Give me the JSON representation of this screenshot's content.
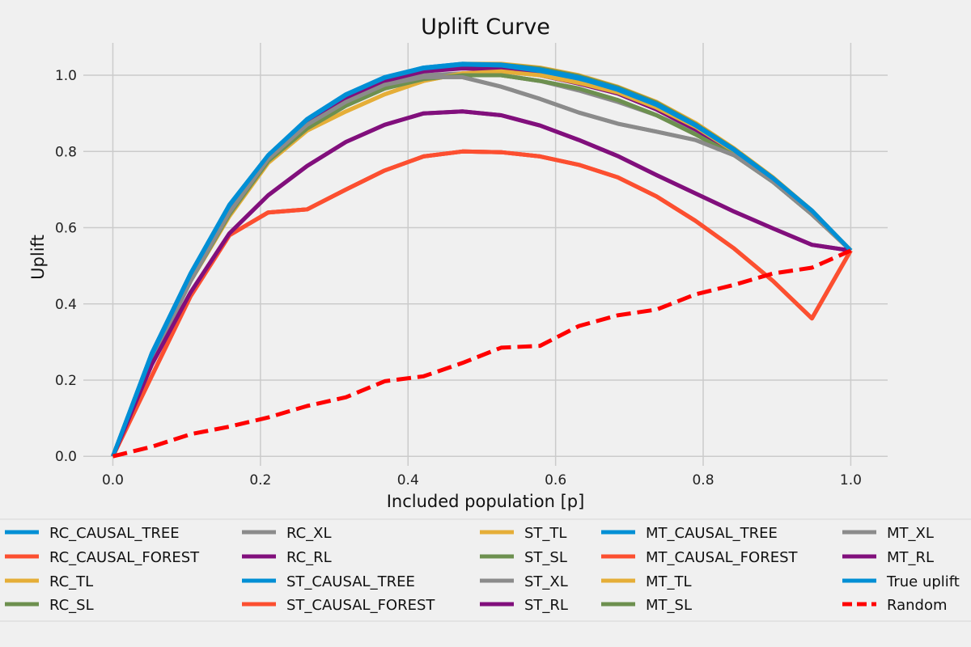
{
  "chart_data": {
    "type": "line",
    "title": "Uplift Curve",
    "xlabel": "Included population [p]",
    "ylabel": "Uplift",
    "xlim": [
      -0.04,
      1.05
    ],
    "ylim": [
      -0.025,
      1.085
    ],
    "xticks": [
      0.0,
      0.2,
      0.4,
      0.6,
      0.8,
      1.0
    ],
    "yticks": [
      0.0,
      0.2,
      0.4,
      0.6,
      0.8,
      1.0
    ],
    "x_tick_labels": [
      "0.0",
      "0.2",
      "0.4",
      "0.6",
      "0.8",
      "1.0"
    ],
    "y_tick_labels": [
      "0.0",
      "0.2",
      "0.4",
      "0.6",
      "0.8",
      "1.0"
    ],
    "grid": true,
    "legend_position": "bottom",
    "x": [
      0.0,
      0.0526,
      0.1053,
      0.1579,
      0.2105,
      0.2632,
      0.3158,
      0.3684,
      0.4211,
      0.4737,
      0.5263,
      0.5789,
      0.6316,
      0.6842,
      0.7368,
      0.7895,
      0.8421,
      0.8947,
      0.9474,
      1.0
    ],
    "series": [
      {
        "name": "RC_CAUSAL_TREE",
        "color": "#008fd5",
        "dash": false,
        "values": [
          0.0,
          0.27,
          0.48,
          0.66,
          0.79,
          0.885,
          0.95,
          0.995,
          1.02,
          1.03,
          1.028,
          1.015,
          0.995,
          0.965,
          0.925,
          0.87,
          0.805,
          0.73,
          0.645,
          0.54
        ]
      },
      {
        "name": "RC_CAUSAL_FOREST",
        "color": "#fc4f30",
        "dash": false,
        "values": [
          0.0,
          0.21,
          0.42,
          0.58,
          0.64,
          0.648,
          0.7,
          0.75,
          0.787,
          0.8,
          0.798,
          0.787,
          0.765,
          0.732,
          0.682,
          0.618,
          0.545,
          0.46,
          0.362,
          0.54
        ]
      },
      {
        "name": "RC_TL",
        "color": "#e5ae38",
        "dash": false,
        "values": [
          0.0,
          0.25,
          0.46,
          0.63,
          0.77,
          0.855,
          0.905,
          0.95,
          0.985,
          1.005,
          1.01,
          1.0,
          0.98,
          0.955,
          0.915,
          0.865,
          0.8,
          0.725,
          0.64,
          0.54
        ]
      },
      {
        "name": "RC_SL",
        "color": "#6d904f",
        "dash": false,
        "values": [
          0.0,
          0.25,
          0.46,
          0.635,
          0.775,
          0.86,
          0.92,
          0.965,
          0.99,
          1.0,
          1.0,
          0.985,
          0.965,
          0.935,
          0.895,
          0.845,
          0.79,
          0.72,
          0.635,
          0.54
        ]
      },
      {
        "name": "RC_XL",
        "color": "#8b8b8b",
        "dash": false,
        "values": [
          0.0,
          0.25,
          0.46,
          0.64,
          0.78,
          0.87,
          0.93,
          0.975,
          0.995,
          0.995,
          0.97,
          0.938,
          0.902,
          0.873,
          0.852,
          0.83,
          0.79,
          0.72,
          0.635,
          0.54
        ]
      },
      {
        "name": "RC_RL",
        "color": "#810f7c",
        "dash": false,
        "values": [
          0.0,
          0.24,
          0.43,
          0.585,
          0.685,
          0.762,
          0.825,
          0.87,
          0.9,
          0.905,
          0.895,
          0.868,
          0.83,
          0.788,
          0.738,
          0.69,
          0.642,
          0.598,
          0.555,
          0.54
        ]
      },
      {
        "name": "ST_CAUSAL_TREE",
        "color": "#008fd5",
        "dash": false,
        "values": [
          0.0,
          0.265,
          0.475,
          0.655,
          0.785,
          0.878,
          0.942,
          0.985,
          1.01,
          1.02,
          1.018,
          1.005,
          0.985,
          0.955,
          0.915,
          0.862,
          0.8,
          0.728,
          0.642,
          0.54
        ]
      },
      {
        "name": "ST_CAUSAL_FOREST",
        "color": "#fc4f30",
        "dash": false,
        "values": [
          0.0,
          0.21,
          0.42,
          0.58,
          0.64,
          0.648,
          0.7,
          0.75,
          0.787,
          0.8,
          0.798,
          0.787,
          0.765,
          0.732,
          0.682,
          0.618,
          0.545,
          0.46,
          0.362,
          0.54
        ]
      },
      {
        "name": "ST_TL",
        "color": "#e5ae38",
        "dash": false,
        "values": [
          0.0,
          0.25,
          0.46,
          0.63,
          0.77,
          0.855,
          0.905,
          0.95,
          0.985,
          1.005,
          1.01,
          1.0,
          0.98,
          0.955,
          0.915,
          0.865,
          0.8,
          0.725,
          0.64,
          0.54
        ]
      },
      {
        "name": "ST_SL",
        "color": "#6d904f",
        "dash": false,
        "values": [
          0.0,
          0.25,
          0.46,
          0.635,
          0.775,
          0.86,
          0.92,
          0.965,
          0.99,
          1.0,
          1.0,
          0.985,
          0.965,
          0.935,
          0.895,
          0.845,
          0.79,
          0.72,
          0.635,
          0.54
        ]
      },
      {
        "name": "ST_XL",
        "color": "#8b8b8b",
        "dash": false,
        "values": [
          0.0,
          0.25,
          0.46,
          0.64,
          0.78,
          0.87,
          0.93,
          0.975,
          0.995,
          0.995,
          0.97,
          0.938,
          0.902,
          0.873,
          0.852,
          0.83,
          0.79,
          0.72,
          0.635,
          0.54
        ]
      },
      {
        "name": "ST_RL",
        "color": "#810f7c",
        "dash": false,
        "values": [
          0.0,
          0.24,
          0.43,
          0.585,
          0.685,
          0.762,
          0.825,
          0.87,
          0.9,
          0.905,
          0.895,
          0.868,
          0.83,
          0.788,
          0.738,
          0.69,
          0.642,
          0.598,
          0.555,
          0.54
        ]
      },
      {
        "name": "MT_CAUSAL_TREE",
        "color": "#008fd5",
        "dash": false,
        "values": [
          0.0,
          0.27,
          0.48,
          0.66,
          0.79,
          0.885,
          0.95,
          0.995,
          1.02,
          1.03,
          1.028,
          1.015,
          0.995,
          0.965,
          0.925,
          0.87,
          0.805,
          0.73,
          0.645,
          0.54
        ]
      },
      {
        "name": "MT_CAUSAL_FOREST",
        "color": "#fc4f30",
        "dash": false,
        "values": [
          0.0,
          0.21,
          0.42,
          0.58,
          0.64,
          0.648,
          0.7,
          0.75,
          0.787,
          0.8,
          0.798,
          0.787,
          0.765,
          0.732,
          0.682,
          0.618,
          0.545,
          0.46,
          0.362,
          0.54
        ]
      },
      {
        "name": "MT_TL",
        "color": "#e5ae38",
        "dash": false,
        "values": [
          0.0,
          0.26,
          0.47,
          0.645,
          0.785,
          0.88,
          0.945,
          0.99,
          1.015,
          1.03,
          1.03,
          1.02,
          1.0,
          0.97,
          0.93,
          0.875,
          0.808,
          0.732,
          0.645,
          0.54
        ]
      },
      {
        "name": "MT_SL",
        "color": "#6d904f",
        "dash": false,
        "values": [
          0.0,
          0.26,
          0.47,
          0.645,
          0.785,
          0.88,
          0.945,
          0.99,
          1.015,
          1.028,
          1.028,
          1.018,
          0.998,
          0.968,
          0.928,
          0.872,
          0.806,
          0.73,
          0.644,
          0.54
        ]
      },
      {
        "name": "MT_XL",
        "color": "#8b8b8b",
        "dash": false,
        "values": [
          0.0,
          0.255,
          0.465,
          0.645,
          0.785,
          0.875,
          0.935,
          0.98,
          1.0,
          1.005,
          1.0,
          0.985,
          0.96,
          0.93,
          0.895,
          0.85,
          0.795,
          0.722,
          0.638,
          0.54
        ]
      },
      {
        "name": "MT_RL",
        "color": "#810f7c",
        "dash": false,
        "values": [
          0.0,
          0.26,
          0.47,
          0.645,
          0.785,
          0.878,
          0.94,
          0.985,
          1.01,
          1.018,
          1.015,
          1.0,
          0.978,
          0.952,
          0.91,
          0.858,
          0.798,
          0.725,
          0.64,
          0.54
        ]
      },
      {
        "name": "True uplift",
        "color": "#008fd5",
        "dash": false,
        "values": [
          0.0,
          0.265,
          0.478,
          0.658,
          0.79,
          0.883,
          0.948,
          0.993,
          1.018,
          1.028,
          1.026,
          1.012,
          0.992,
          0.962,
          0.922,
          0.868,
          0.803,
          0.729,
          0.644,
          0.54
        ]
      },
      {
        "name": "Random",
        "color": "#ff0000",
        "dash": true,
        "values": [
          0.0,
          0.025,
          0.058,
          0.078,
          0.102,
          0.132,
          0.155,
          0.197,
          0.21,
          0.245,
          0.285,
          0.29,
          0.342,
          0.37,
          0.385,
          0.425,
          0.45,
          0.48,
          0.495,
          0.54
        ]
      }
    ],
    "draw_order": [
      6,
      7,
      8,
      9,
      10,
      11,
      12,
      13,
      14,
      15,
      16,
      17,
      0,
      1,
      2,
      3,
      4,
      5,
      18,
      19
    ]
  }
}
